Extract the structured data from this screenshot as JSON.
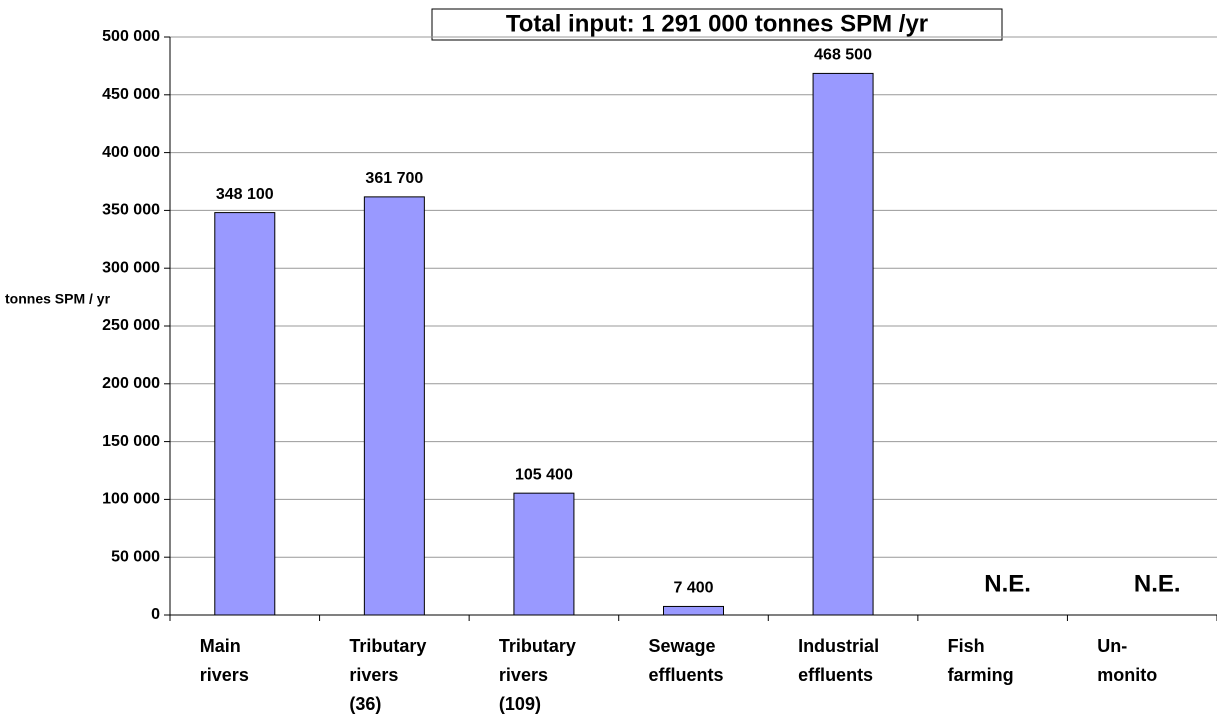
{
  "chart_data": {
    "type": "bar",
    "title": "Total input: 1 291 000 tonnes SPM /yr",
    "y_label": "tonnes SPM / yr",
    "categories": [
      "Main\nrivers",
      "Tributary\nrivers\n(36)",
      "Tributary\nrivers\n(109)",
      "Sewage\neffluents",
      "Industrial\neffluents",
      "Fish\nfarming",
      "Un-\nmonito"
    ],
    "values": [
      348100,
      361700,
      105400,
      7400,
      468500,
      null,
      null
    ],
    "value_labels": [
      "348 100",
      "361 700",
      "105 400",
      "7 400",
      "468 500",
      "N.E.",
      "N.E."
    ],
    "color": "#9999ff",
    "ylim": [
      0,
      500000
    ],
    "yticks": [
      0,
      {
        "value": 50000,
        "label": "50 000"
      },
      {
        "value": 100000,
        "label": "100 000"
      },
      {
        "value": 150000,
        "label": "150 000"
      },
      {
        "value": 200000,
        "label": "200 000"
      },
      {
        "value": 250000,
        "label": "250 000"
      },
      {
        "value": 300000,
        "label": "300 000"
      },
      {
        "value": 350000,
        "label": "350 000"
      },
      {
        "value": 400000,
        "label": "400 000"
      },
      {
        "value": 450000,
        "label": "450 000"
      },
      {
        "value": 500000,
        "label": "500 000"
      }
    ],
    "grid": true
  }
}
